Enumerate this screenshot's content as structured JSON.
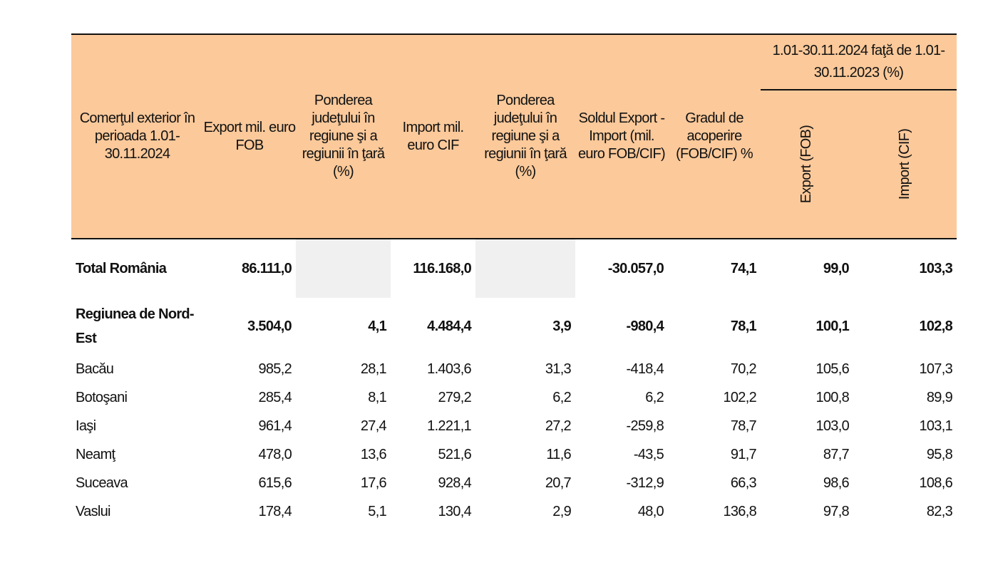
{
  "header": {
    "col_period": "Comerţul exterior în perioada 1.01-30.11.2024",
    "col_export": "Export mil. euro FOB",
    "col_share_export": "Ponderea judeţului în regiune şi a regiunii în ţară (%)",
    "col_import": "Import mil. euro CIF",
    "col_share_import": "Ponderea judeţului în regiune şi a regiunii în ţară (%)",
    "col_balance": "Soldul Export - Import (mil. euro FOB/CIF)",
    "col_coverage": "Gradul de acoperire (FOB/CIF) %",
    "group_comparison": "1.01-30.11.2024 faţă de 1.01-30.11.2023 (%)",
    "sub_export": "Export (FOB)",
    "sub_import": "Import (CIF)"
  },
  "rows": [
    {
      "label": "Total România",
      "export": "86.111,0",
      "share_export": "",
      "import": "116.168,0",
      "share_import": "",
      "balance": "-30.057,0",
      "coverage": "74,1",
      "idx_export": "99,0",
      "idx_import": "103,3"
    },
    {
      "label": "Regiunea de Nord-Est",
      "export": "3.504,0",
      "share_export": "4,1",
      "import": "4.484,4",
      "share_import": "3,9",
      "balance": "-980,4",
      "coverage": "78,1",
      "idx_export": "100,1",
      "idx_import": "102,8"
    },
    {
      "label": "Bacău",
      "export": "985,2",
      "share_export": "28,1",
      "import": "1.403,6",
      "share_import": "31,3",
      "balance": "-418,4",
      "coverage": "70,2",
      "idx_export": "105,6",
      "idx_import": "107,3"
    },
    {
      "label": "Botoşani",
      "export": "285,4",
      "share_export": "8,1",
      "import": "279,2",
      "share_import": "6,2",
      "balance": "6,2",
      "coverage": "102,2",
      "idx_export": "100,8",
      "idx_import": "89,9"
    },
    {
      "label": "Iaşi",
      "export": "961,4",
      "share_export": "27,4",
      "import": "1.221,1",
      "share_import": "27,2",
      "balance": "-259,8",
      "coverage": "78,7",
      "idx_export": "103,0",
      "idx_import": "103,1"
    },
    {
      "label": "Neamţ",
      "export": "478,0",
      "share_export": "13,6",
      "import": "521,6",
      "share_import": "11,6",
      "balance": "-43,5",
      "coverage": "91,7",
      "idx_export": "87,7",
      "idx_import": "95,8"
    },
    {
      "label": "Suceava",
      "export": "615,6",
      "share_export": "17,6",
      "import": "928,4",
      "share_import": "20,7",
      "balance": "-312,9",
      "coverage": "66,3",
      "idx_export": "98,6",
      "idx_import": "108,6"
    },
    {
      "label": "Vaslui",
      "export": "178,4",
      "share_export": "5,1",
      "import": "130,4",
      "share_import": "2,9",
      "balance": "48,0",
      "coverage": "136,8",
      "idx_export": "97,8",
      "idx_import": "82,3"
    }
  ],
  "colors": {
    "header_bg": "#fbc99a",
    "empty_cell": "#f0f0f0"
  }
}
